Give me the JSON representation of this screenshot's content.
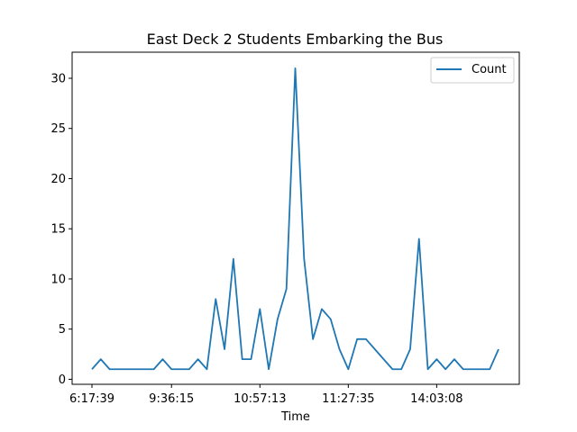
{
  "chart_data": {
    "type": "line",
    "title": "East Deck 2 Students Embarking the Bus",
    "xlabel": "Time",
    "ylabel": "",
    "ylim": [
      -0.5,
      32.6
    ],
    "yticks": [
      0,
      5,
      10,
      15,
      20,
      25,
      30
    ],
    "x_tick_labels": [
      {
        "index": 0,
        "label": "6:17:39"
      },
      {
        "index": 9,
        "label": "9:36:15"
      },
      {
        "index": 19,
        "label": "10:57:13"
      },
      {
        "index": 29,
        "label": "11:27:35"
      },
      {
        "index": 39,
        "label": "14:03:08"
      }
    ],
    "grid": false,
    "legend_position": "top-right",
    "series": [
      {
        "name": "Count",
        "color": "#1f77b4",
        "values": [
          1,
          2,
          1,
          1,
          1,
          1,
          1,
          1,
          2,
          1,
          1,
          1,
          2,
          1,
          8,
          3,
          12,
          2,
          2,
          7,
          1,
          6,
          9,
          31,
          12,
          4,
          7,
          6,
          3,
          1,
          4,
          4,
          3,
          2,
          1,
          1,
          3,
          14,
          1,
          2,
          1,
          2,
          1,
          1,
          1,
          1,
          3
        ]
      }
    ]
  }
}
